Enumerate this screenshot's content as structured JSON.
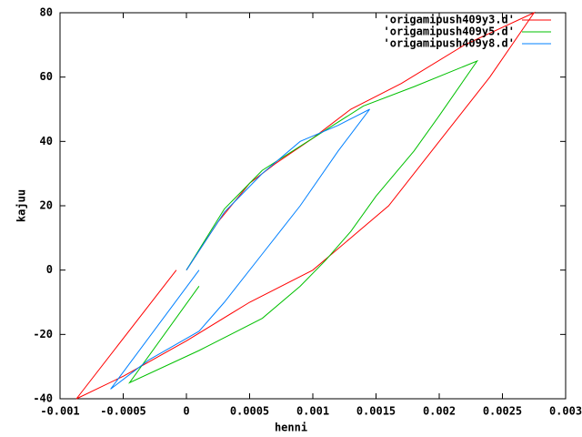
{
  "chart_data": {
    "type": "line",
    "xlabel": "henni",
    "ylabel": "kajuu",
    "xlim": [
      -0.001,
      0.003
    ],
    "xticks": [
      -0.001,
      -0.0005,
      0,
      0.0005,
      0.001,
      0.0015,
      0.002,
      0.0025,
      0.003
    ],
    "ylim": [
      -40,
      80
    ],
    "yticks": [
      -40,
      -20,
      0,
      20,
      40,
      60,
      80
    ],
    "legend": "top-right",
    "series": [
      {
        "name": "'origamipush409y3.d'",
        "color": "#ff0000",
        "x": [
          -8e-05,
          -0.00087,
          -0.0005,
          0,
          0.0005,
          0.001,
          0.0013,
          0.0016,
          0.002,
          0.0024,
          0.00275,
          0.0022,
          0.0017,
          0.0013,
          0.001,
          0.0007,
          0.0005,
          0.00025,
          0
        ],
        "values": [
          0,
          -40,
          -33,
          -22,
          -10,
          0,
          10,
          20,
          40,
          60,
          80,
          70,
          58,
          50,
          41,
          33,
          27,
          15,
          0
        ]
      },
      {
        "name": "'origamipush409y5.d'",
        "color": "#00c000",
        "x": [
          0.0001,
          -0.00045,
          0.0001,
          0.0006,
          0.0009,
          0.0011,
          0.0013,
          0.0015,
          0.0018,
          0.002,
          0.0023,
          0.0018,
          0.0014,
          0.001,
          0.0006,
          0.0003,
          0
        ],
        "values": [
          -5,
          -35,
          -25,
          -15,
          -5,
          3,
          12,
          23,
          37,
          48,
          65,
          57,
          51,
          41,
          31,
          19,
          0
        ]
      },
      {
        "name": "'origamipush409y8.d'",
        "color": "#0080ff",
        "x": [
          0.0001,
          -0.0006,
          -0.0003,
          0.0001,
          0.0003,
          0.0006,
          0.0009,
          0.0012,
          0.00145,
          0.0012,
          0.0009,
          0.0006,
          0.0003,
          0
        ],
        "values": [
          0,
          -37,
          -28,
          -19,
          -10,
          5,
          20,
          37,
          50,
          45,
          40,
          30,
          18,
          0
        ]
      }
    ]
  }
}
